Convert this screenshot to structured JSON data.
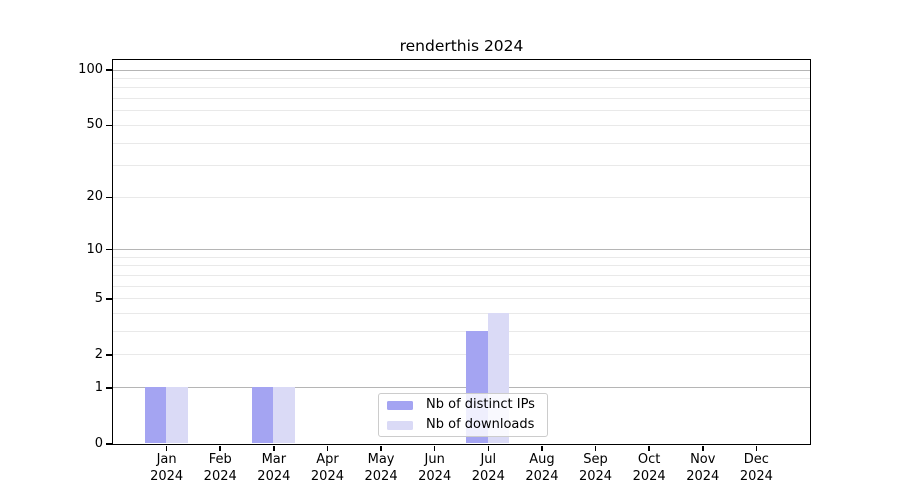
{
  "title": "renderthis 2024",
  "colors": {
    "ips_bar": "#a4a4f2",
    "downloads_bar": "#dadaf6",
    "grid_major": "#b5b5b5",
    "grid_minor": "#e9e9e9",
    "axis": "#000000",
    "legend_border": "#cccccc",
    "background": "#ffffff"
  },
  "legend": {
    "items": [
      {
        "label": "Nb of distinct IPs",
        "series_index": 0
      },
      {
        "label": "Nb of downloads",
        "series_index": 1
      }
    ]
  },
  "chart_data": {
    "type": "bar",
    "title": "renderthis 2024",
    "categories": [
      "Jan 2024",
      "Feb 2024",
      "Mar 2024",
      "Apr 2024",
      "May 2024",
      "Jun 2024",
      "Jul 2024",
      "Aug 2024",
      "Sep 2024",
      "Oct 2024",
      "Nov 2024",
      "Dec 2024"
    ],
    "series": [
      {
        "name": "Nb of distinct IPs",
        "color": "#a4a4f2",
        "values": [
          1,
          0,
          1,
          0,
          0,
          0,
          3,
          0,
          0,
          0,
          0,
          0
        ]
      },
      {
        "name": "Nb of downloads",
        "color": "#dadaf6",
        "values": [
          1,
          0,
          1,
          0,
          0,
          0,
          4,
          0,
          0,
          0,
          0,
          0
        ]
      }
    ],
    "xlabel": "",
    "ylabel": "",
    "y_scale": "log1p",
    "ylim": [
      0,
      113.3
    ],
    "y_tick_labels": [
      0,
      1,
      2,
      5,
      10,
      20,
      50,
      100
    ],
    "y_gridlines_major": [
      1,
      10,
      100
    ],
    "y_gridlines_minor": [
      2,
      3,
      4,
      5,
      6,
      7,
      8,
      9,
      20,
      30,
      40,
      50,
      60,
      70,
      80,
      90
    ],
    "grid": true,
    "legend_position": "lower center inside"
  }
}
